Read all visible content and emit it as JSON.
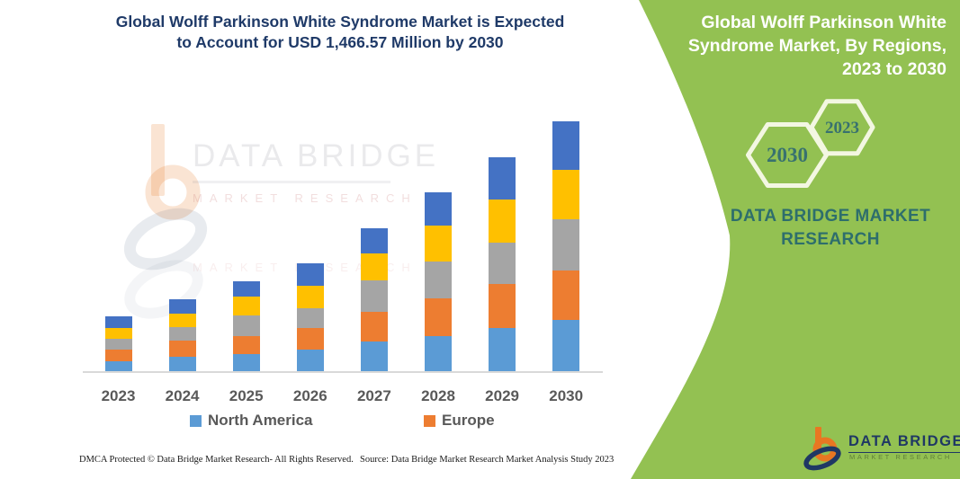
{
  "header": {
    "title": "Global Wolff Parkinson White Syndrome Market is Expected to Account for USD 1,466.57 Million by 2030"
  },
  "side_panel": {
    "title": "Global Wolff Parkinson White Syndrome Market, By Regions, 2023 to 2030",
    "hexagons": {
      "back_year": "2030",
      "front_year": "2023"
    },
    "brand_text": "DATA BRIDGE MARKET RESEARCH",
    "logo": {
      "name": "DATA BRIDGE",
      "subtitle": "MARKET RESEARCH"
    }
  },
  "watermark": {
    "line1": "DATA BRIDGE",
    "line2": "MARKET RESEARCH"
  },
  "colors": {
    "panel_green": "#93C152",
    "title_navy": "#1F3A68",
    "brand_teal": "#2E6E6C",
    "hexagon_outline": "#F3F7E2",
    "axis_label_gray": "#595959",
    "axis_line_gray": "#D9D9D9",
    "logo_orange": "#E87722",
    "logo_navy": "#1F3864"
  },
  "chart_data": {
    "type": "bar",
    "stacked": true,
    "stack_order": "bottom-to-top",
    "units": "USD Million (estimated; title states 2030 total = 1,466.57)",
    "grid": false,
    "y_axis_visible": false,
    "legend_position": "bottom",
    "categories": [
      "2023",
      "2024",
      "2025",
      "2026",
      "2027",
      "2028",
      "2029",
      "2030"
    ],
    "series": [
      {
        "name": "North America",
        "color": "#5B9BD5",
        "values": [
          60,
          84,
          102,
          125,
          176,
          208,
          255,
          299.4
        ]
      },
      {
        "name": "Europe",
        "color": "#ED7D31",
        "values": [
          67,
          93,
          106,
          130,
          173,
          220,
          255,
          290.5
        ]
      },
      {
        "name": "",
        "color": "#A5A5A5",
        "values": [
          62,
          83,
          118,
          116,
          185,
          215,
          247,
          302.6
        ]
      },
      {
        "name": "",
        "color": "#FFC000",
        "values": [
          65,
          79,
          111,
          131,
          158,
          211,
          250,
          292.0
        ]
      },
      {
        "name": "",
        "color": "#4472C4",
        "values": [
          67,
          81,
          91,
          132,
          149,
          199,
          252,
          282.07
        ]
      }
    ],
    "totals": [
      321,
      420,
      528,
      634,
      841,
      1053,
      1259,
      1466.57
    ],
    "legend": [
      {
        "label": "North America",
        "color": "#5B9BD5"
      },
      {
        "label": "Europe",
        "color": "#ED7D31"
      }
    ]
  },
  "footer": {
    "left": "DMCA Protected © Data Bridge Market Research-  All Rights Reserved.",
    "right": "Source: Data Bridge Market Research  Market Analysis Study 2023"
  }
}
